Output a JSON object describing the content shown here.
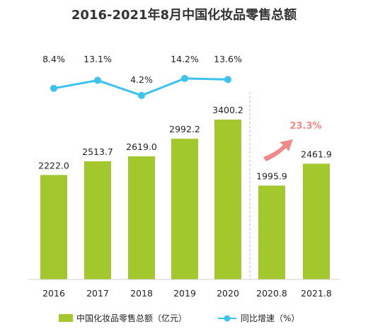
{
  "chart_data": {
    "type": "bar+line",
    "title": "2016-2021年8月中国化妆品零售总额",
    "categories": [
      "2016",
      "2017",
      "2018",
      "2019",
      "2020",
      "2020.8",
      "2021.8"
    ],
    "bar_series": {
      "name": "中国化妆品零售总额（亿元）",
      "values": [
        2222.0,
        2513.7,
        2619.0,
        2992.2,
        3400.2,
        1995.9,
        2461.9
      ],
      "labels": [
        "2222.0",
        "2513.7",
        "2619.0",
        "2992.2",
        "3400.2",
        "1995.9",
        "2461.9"
      ],
      "color": "#a3c82e"
    },
    "line_series": {
      "name": "同比增速（%）",
      "categories": [
        "2016",
        "2017",
        "2018",
        "2019",
        "2020"
      ],
      "values": [
        8.4,
        13.1,
        4.2,
        14.2,
        13.6
      ],
      "labels": [
        "8.4%",
        "13.1%",
        "4.2%",
        "14.2%",
        "13.6%"
      ],
      "color": "#3bc3ee"
    },
    "growth_annotation": {
      "text": "23.3%",
      "color": "#f08a8a"
    },
    "divider_color": "#f5a0a0",
    "legend_position": "bottom",
    "grid": false
  }
}
